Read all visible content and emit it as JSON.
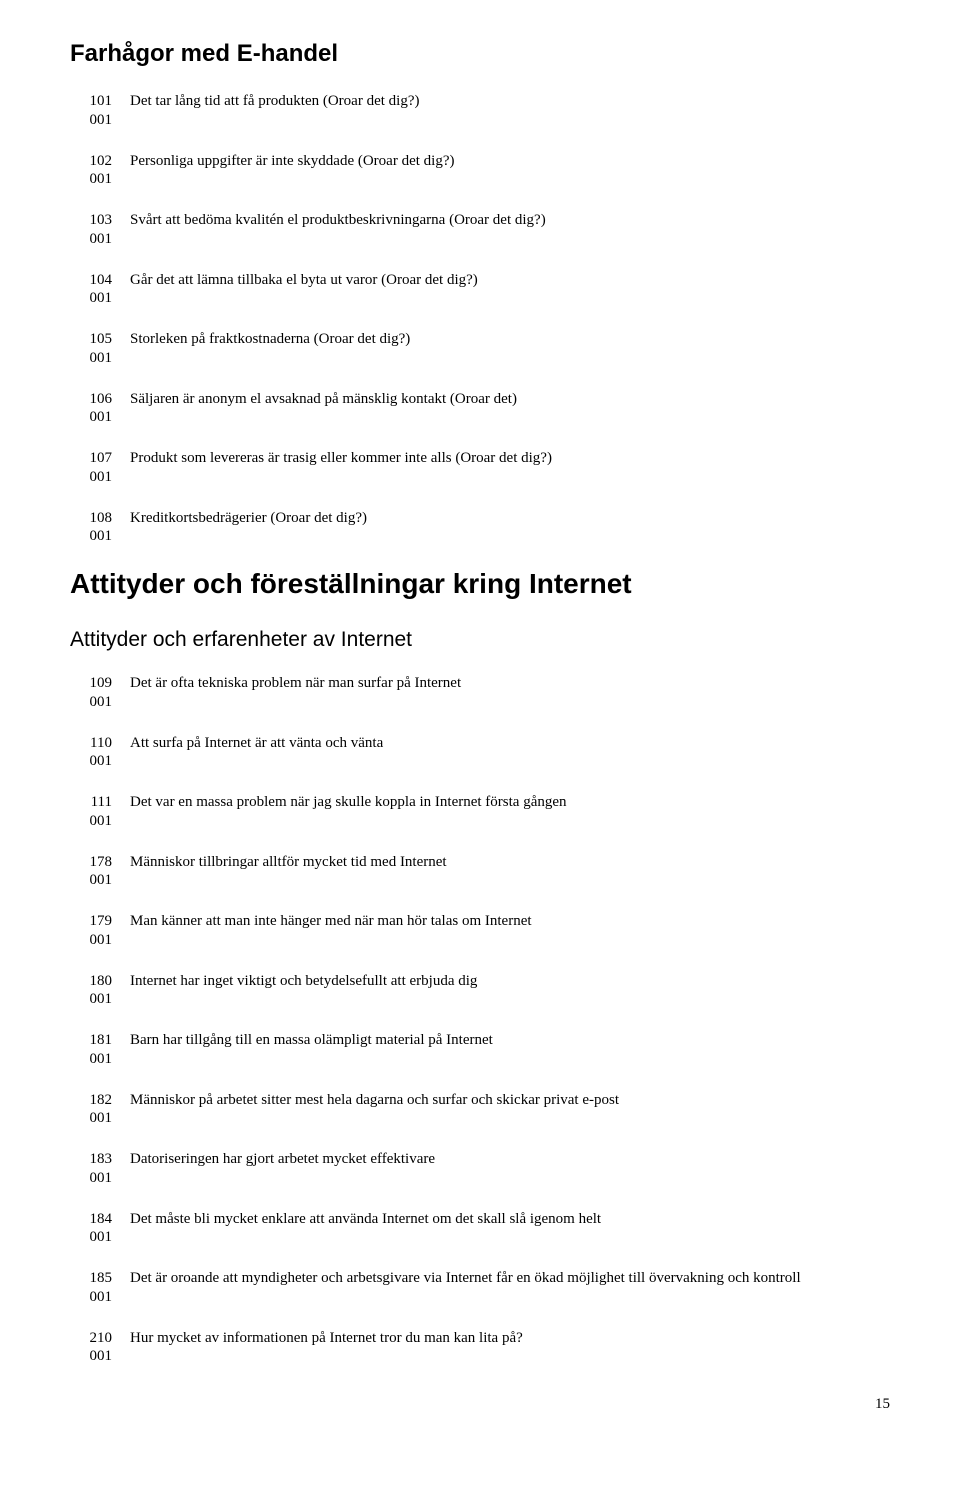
{
  "headings": {
    "h1": "Farhågor med E-handel",
    "h2": "Attityder och föreställningar kring Internet",
    "h3": "Attityder och erfarenheter av Internet"
  },
  "block1": [
    {
      "num": "101",
      "sub": "001",
      "text": "Det tar lång tid att få produkten (Oroar det dig?)"
    },
    {
      "num": "102",
      "sub": "001",
      "text": "Personliga uppgifter är inte skyddade    (Oroar det dig?)"
    },
    {
      "num": "103",
      "sub": "001",
      "text": "Svårt att bedöma kvalitén el produktbeskrivningarna (Oroar det dig?)"
    },
    {
      "num": "104",
      "sub": "001",
      "text": "Går det att lämna tillbaka el byta ut varor (Oroar det dig?)"
    },
    {
      "num": "105",
      "sub": "001",
      "text": "Storleken på fraktkostnaderna  (Oroar det dig?)"
    },
    {
      "num": "106",
      "sub": "001",
      "text": "Säljaren är anonym el avsaknad på mänsklig kontakt (Oroar det)"
    },
    {
      "num": "107",
      "sub": "001",
      "text": "Produkt som levereras är trasig eller kommer inte alls (Oroar det dig?)"
    },
    {
      "num": "108",
      "sub": "001",
      "text": "Kreditkortsbedrägerier (Oroar det dig?)"
    }
  ],
  "block2": [
    {
      "num": "109",
      "sub": "001",
      "text": "Det är ofta tekniska problem när man surfar på Internet"
    },
    {
      "num": "110",
      "sub": "001",
      "text": "Att surfa på Internet är att vänta och vänta"
    },
    {
      "num": "111",
      "sub": "001",
      "text": "Det var en massa problem när jag skulle koppla in Internet första gången"
    },
    {
      "num": "178",
      "sub": "001",
      "text": "Människor tillbringar alltför mycket tid med Internet"
    },
    {
      "num": "179",
      "sub": "001",
      "text": "Man känner att man inte hänger med när man hör talas om Internet"
    },
    {
      "num": "180",
      "sub": "001",
      "text": "Internet har inget viktigt och betydelsefullt att erbjuda dig"
    },
    {
      "num": "181",
      "sub": "001",
      "text": "Barn har tillgång till en massa olämpligt material på Internet"
    },
    {
      "num": "182",
      "sub": "001",
      "text": "Människor på arbetet sitter mest hela dagarna och surfar och skickar privat e-post"
    },
    {
      "num": "183",
      "sub": "001",
      "text": "Datoriseringen har gjort arbetet mycket effektivare"
    },
    {
      "num": "184",
      "sub": "001",
      "text": "Det måste bli mycket enklare att använda Internet om det skall slå igenom helt"
    },
    {
      "num": "185",
      "sub": "001",
      "text": "Det är oroande att myndigheter och arbetsgivare via Internet får en ökad möjlighet till övervakning och kontroll"
    },
    {
      "num": "210",
      "sub": "001",
      "text": "Hur mycket av informationen på Internet tror du man kan lita på?"
    }
  ],
  "page_number": "15"
}
